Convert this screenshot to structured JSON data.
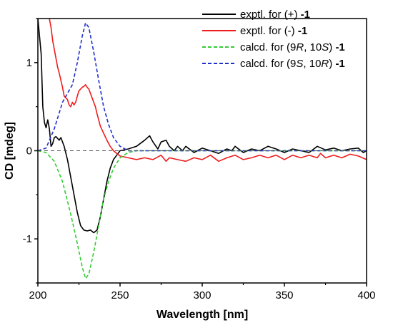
{
  "chart_data": {
    "type": "line",
    "xlabel": "Wavelength [nm]",
    "ylabel": "CD [mdeg]",
    "xlim": [
      200,
      400
    ],
    "ylim": [
      -1.5,
      1.5
    ],
    "x_ticks": [
      200,
      250,
      300,
      350,
      400
    ],
    "y_ticks": [
      -1,
      0,
      1
    ],
    "y_tick_labels": [
      "-1",
      "0",
      "1"
    ],
    "zero_line": true,
    "grid": false,
    "legend_position": "top-right",
    "series": [
      {
        "name_prefix": "exptl. for (+) ",
        "name_compound": "-1",
        "color": "#000000",
        "dash": "solid",
        "points": [
          [
            200,
            1.5
          ],
          [
            202,
            1.1
          ],
          [
            203,
            0.5
          ],
          [
            204,
            0.32
          ],
          [
            205,
            0.26
          ],
          [
            206,
            0.35
          ],
          [
            207,
            0.25
          ],
          [
            208,
            0.05
          ],
          [
            209,
            0.08
          ],
          [
            210,
            0.15
          ],
          [
            211,
            0.16
          ],
          [
            212,
            0.14
          ],
          [
            213,
            0.12
          ],
          [
            214,
            0.15
          ],
          [
            215,
            0.1
          ],
          [
            216,
            0.05
          ],
          [
            218,
            -0.1
          ],
          [
            220,
            -0.3
          ],
          [
            222,
            -0.5
          ],
          [
            224,
            -0.7
          ],
          [
            226,
            -0.85
          ],
          [
            228,
            -0.9
          ],
          [
            230,
            -0.91
          ],
          [
            232,
            -0.9
          ],
          [
            234,
            -0.93
          ],
          [
            236,
            -0.9
          ],
          [
            238,
            -0.75
          ],
          [
            240,
            -0.55
          ],
          [
            242,
            -0.35
          ],
          [
            244,
            -0.2
          ],
          [
            246,
            -0.1
          ],
          [
            248,
            -0.05
          ],
          [
            250,
            0.0
          ],
          [
            255,
            0.02
          ],
          [
            260,
            0.05
          ],
          [
            265,
            0.12
          ],
          [
            268,
            0.17
          ],
          [
            270,
            0.1
          ],
          [
            273,
            0.02
          ],
          [
            275,
            0.1
          ],
          [
            278,
            0.12
          ],
          [
            280,
            0.05
          ],
          [
            283,
            0.0
          ],
          [
            285,
            0.05
          ],
          [
            288,
            0.0
          ],
          [
            290,
            0.05
          ],
          [
            295,
            -0.02
          ],
          [
            300,
            0.03
          ],
          [
            305,
            0.0
          ],
          [
            310,
            -0.03
          ],
          [
            315,
            0.02
          ],
          [
            318,
            0.0
          ],
          [
            320,
            0.05
          ],
          [
            325,
            -0.02
          ],
          [
            330,
            0.02
          ],
          [
            335,
            0.0
          ],
          [
            340,
            0.05
          ],
          [
            345,
            0.02
          ],
          [
            350,
            -0.02
          ],
          [
            355,
            0.02
          ],
          [
            360,
            0.0
          ],
          [
            365,
            -0.02
          ],
          [
            370,
            0.05
          ],
          [
            375,
            0.01
          ],
          [
            380,
            0.03
          ],
          [
            385,
            0.0
          ],
          [
            390,
            0.02
          ],
          [
            395,
            0.03
          ],
          [
            398,
            -0.02
          ],
          [
            400,
            0.0
          ]
        ]
      },
      {
        "name_prefix": "exptl. for (-) ",
        "name_compound": "-1",
        "color": "#ee1c1c",
        "dash": "solid",
        "points": [
          [
            207,
            1.5
          ],
          [
            208,
            1.4
          ],
          [
            209,
            1.25
          ],
          [
            210,
            1.15
          ],
          [
            211,
            1.05
          ],
          [
            212,
            0.95
          ],
          [
            213,
            0.88
          ],
          [
            214,
            0.8
          ],
          [
            215,
            0.72
          ],
          [
            216,
            0.62
          ],
          [
            217,
            0.6
          ],
          [
            218,
            0.58
          ],
          [
            219,
            0.52
          ],
          [
            220,
            0.5
          ],
          [
            221,
            0.55
          ],
          [
            222,
            0.52
          ],
          [
            223,
            0.55
          ],
          [
            224,
            0.62
          ],
          [
            225,
            0.68
          ],
          [
            226,
            0.7
          ],
          [
            227,
            0.72
          ],
          [
            228,
            0.73
          ],
          [
            229,
            0.75
          ],
          [
            230,
            0.72
          ],
          [
            231,
            0.7
          ],
          [
            232,
            0.65
          ],
          [
            233,
            0.6
          ],
          [
            234,
            0.55
          ],
          [
            235,
            0.5
          ],
          [
            236,
            0.42
          ],
          [
            237,
            0.35
          ],
          [
            238,
            0.28
          ],
          [
            240,
            0.2
          ],
          [
            242,
            0.12
          ],
          [
            244,
            0.05
          ],
          [
            246,
            0.0
          ],
          [
            248,
            -0.03
          ],
          [
            250,
            -0.06
          ],
          [
            255,
            -0.08
          ],
          [
            260,
            -0.1
          ],
          [
            265,
            -0.08
          ],
          [
            270,
            -0.1
          ],
          [
            275,
            -0.05
          ],
          [
            278,
            -0.12
          ],
          [
            280,
            -0.08
          ],
          [
            285,
            -0.1
          ],
          [
            290,
            -0.12
          ],
          [
            295,
            -0.08
          ],
          [
            300,
            -0.1
          ],
          [
            305,
            -0.05
          ],
          [
            310,
            -0.12
          ],
          [
            315,
            -0.08
          ],
          [
            320,
            -0.05
          ],
          [
            325,
            -0.1
          ],
          [
            330,
            -0.08
          ],
          [
            335,
            -0.05
          ],
          [
            340,
            -0.08
          ],
          [
            345,
            -0.05
          ],
          [
            350,
            -0.1
          ],
          [
            355,
            -0.05
          ],
          [
            360,
            -0.08
          ],
          [
            365,
            -0.05
          ],
          [
            370,
            -0.08
          ],
          [
            372,
            -0.03
          ],
          [
            375,
            -0.08
          ],
          [
            380,
            -0.05
          ],
          [
            385,
            -0.08
          ],
          [
            390,
            -0.04
          ],
          [
            395,
            -0.06
          ],
          [
            400,
            -0.1
          ]
        ]
      },
      {
        "name_prefix": "calcd. for (9",
        "name_italic_1": "R",
        "name_mid": ", 10",
        "name_italic_2": "S",
        "name_suffix": ") ",
        "name_compound": "-1",
        "color": "#33cc33",
        "dash": "dashed",
        "points": [
          [
            200,
            0.0
          ],
          [
            205,
            -0.02
          ],
          [
            210,
            -0.12
          ],
          [
            215,
            -0.35
          ],
          [
            220,
            -0.72
          ],
          [
            224,
            -1.05
          ],
          [
            227,
            -1.32
          ],
          [
            229,
            -1.45
          ],
          [
            231,
            -1.4
          ],
          [
            234,
            -1.15
          ],
          [
            237,
            -0.85
          ],
          [
            240,
            -0.55
          ],
          [
            243,
            -0.35
          ],
          [
            246,
            -0.2
          ],
          [
            250,
            -0.08
          ],
          [
            255,
            -0.02
          ],
          [
            260,
            0.0
          ],
          [
            300,
            0.0
          ],
          [
            350,
            0.0
          ],
          [
            400,
            0.0
          ]
        ]
      },
      {
        "name_prefix": "calcd. for (9",
        "name_italic_1": "S",
        "name_mid": ", 10",
        "name_italic_2": "R",
        "name_suffix": ") ",
        "name_compound": "-1",
        "color": "#1f2fcc",
        "dash": "dashed",
        "points": [
          [
            200,
            0.0
          ],
          [
            205,
            0.03
          ],
          [
            210,
            0.25
          ],
          [
            215,
            0.55
          ],
          [
            218,
            0.65
          ],
          [
            221,
            0.75
          ],
          [
            224,
            1.0
          ],
          [
            227,
            1.3
          ],
          [
            229,
            1.45
          ],
          [
            231,
            1.4
          ],
          [
            234,
            1.12
          ],
          [
            237,
            0.8
          ],
          [
            240,
            0.5
          ],
          [
            243,
            0.3
          ],
          [
            246,
            0.15
          ],
          [
            250,
            0.05
          ],
          [
            255,
            0.0
          ],
          [
            300,
            0.0
          ],
          [
            350,
            0.0
          ],
          [
            400,
            0.0
          ]
        ]
      }
    ]
  }
}
